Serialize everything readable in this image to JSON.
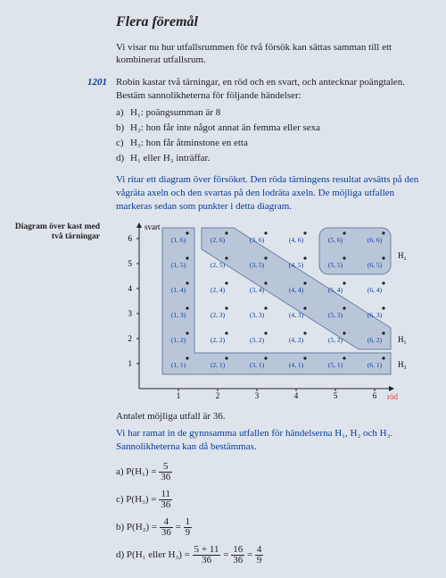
{
  "title": "Flera föremål",
  "intro": "Vi visar nu hur utfallsrummen för två försök kan sättas samman till ett kombinerat utfallsrum.",
  "exercise": {
    "number": "1201",
    "stem_a": "Robin kastar två tärningar, en röd och en svart, och antecknar poängtalen.",
    "stem_b": "Bestäm sannolikheterna för följande händelser:",
    "items": [
      {
        "lab": "a)",
        "txt": "H₁: poängsumman är 8"
      },
      {
        "lab": "b)",
        "txt": "H₂: hon får inte något annat än femma eller sexa"
      },
      {
        "lab": "c)",
        "txt": "H₃: hon får åtminstone en etta"
      },
      {
        "lab": "d)",
        "txt": "H₁ eller H₃ inträffar."
      }
    ],
    "explain": "Vi ritar ett diagram över försöket. Den röda tärningens resultat avsätts på den vågräta axeln och den svartas på den lodräta axeln. De möjliga utfallen markeras sedan som punkter i detta diagram."
  },
  "sidecap1": "Diagram över kast med",
  "sidecap2": "två tärningar",
  "after1": "Antalet möjliga utfall är 36.",
  "after2": "Vi har ramat in de gynnsamma utfallen för händelserna H₁, H₂ och H₃. Sannolikheterna kan då bestämmas.",
  "answers": {
    "a_lab": "a)  P(H₁) =",
    "a_n": "5",
    "a_d": "36",
    "b_lab": "b)  P(H₂) =",
    "b_n": "4",
    "b_d": "36",
    "b_eq": "=",
    "b_n2": "1",
    "b_d2": "9",
    "c_lab": "c)  P(H₃) =",
    "c_n": "11",
    "c_d": "36",
    "d_lab": "d)  P(H₁ eller H₃) =",
    "d_n": "5 + 11",
    "d_d": "36",
    "d_eq": "=",
    "d_n2": "16",
    "d_d2": "36",
    "d_eq2": "=",
    "d_n3": "4",
    "d_d3": "9"
  },
  "chart": {
    "xlabel": "röd",
    "ylabel": "svart",
    "ticks": [
      "1",
      "2",
      "3",
      "4",
      "5",
      "6"
    ],
    "fill": "#b9c6da",
    "stroke": "#6a7fa3",
    "h1": "H₁",
    "h2": "H₂",
    "h3": "H₃",
    "cells": [
      [
        "(1, 1)",
        "(2, 1)",
        "(3, 1)",
        "(4, 1)",
        "(5, 1)",
        "(6, 1)"
      ],
      [
        "(1, 2)",
        "(2, 2)",
        "(3, 2)",
        "(4, 2)",
        "(5, 2)",
        "(6, 2)"
      ],
      [
        "(1, 3)",
        "(2, 3)",
        "(3, 3)",
        "(4, 3)",
        "(5, 3)",
        "(6, 3)"
      ],
      [
        "(1, 4)",
        "(2, 4)",
        "(3, 4)",
        "(4, 4)",
        "(5, 4)",
        "(6, 4)"
      ],
      [
        "(1, 5)",
        "(2, 5)",
        "(3, 5)",
        "(4, 5)",
        "(5, 5)",
        "(6, 5)"
      ],
      [
        "(1, 6)",
        "(2, 6)",
        "(3, 6)",
        "(4, 6)",
        "(5, 6)",
        "(6, 6)"
      ]
    ]
  }
}
